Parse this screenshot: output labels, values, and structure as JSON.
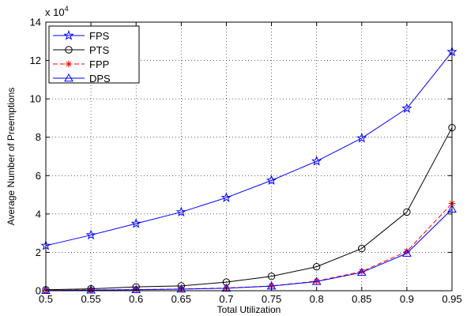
{
  "chart_data": {
    "type": "line",
    "title": "",
    "xlabel": "Total Utilization",
    "ylabel": "Average Number of Preemptions",
    "y_multiplier_label": "x 10",
    "y_multiplier_exponent": "4",
    "x": [
      0.5,
      0.55,
      0.6,
      0.65,
      0.7,
      0.75,
      0.8,
      0.85,
      0.9,
      0.95
    ],
    "xlim": [
      0.5,
      0.95
    ],
    "ylim": [
      0,
      14
    ],
    "x_ticks": [
      "0.5",
      "0.55",
      "0.6",
      "0.65",
      "0.7",
      "0.75",
      "0.8",
      "0.85",
      "0.9",
      "0.95"
    ],
    "y_ticks": [
      "0",
      "2",
      "4",
      "6",
      "8",
      "10",
      "12",
      "14"
    ],
    "grid": true,
    "legend_position": "top-left",
    "series": [
      {
        "name": "FPS",
        "color": "#0000ff",
        "dash": "solid",
        "marker": "star",
        "values": [
          2.35,
          2.9,
          3.5,
          4.1,
          4.85,
          5.75,
          6.75,
          7.95,
          9.5,
          12.45
        ]
      },
      {
        "name": "PTS",
        "color": "#000000",
        "dash": "solid",
        "marker": "circle",
        "values": [
          0.05,
          0.1,
          0.2,
          0.25,
          0.45,
          0.75,
          1.25,
          2.2,
          4.1,
          8.5
        ]
      },
      {
        "name": "FPP",
        "color": "#ff0000",
        "dash": "dashed",
        "marker": "asterisk",
        "values": [
          0.02,
          0.04,
          0.06,
          0.09,
          0.14,
          0.25,
          0.5,
          1.0,
          2.05,
          4.55
        ]
      },
      {
        "name": "DPS",
        "color": "#0000ff",
        "dash": "solid",
        "marker": "triangle",
        "values": [
          0.01,
          0.03,
          0.05,
          0.08,
          0.13,
          0.24,
          0.48,
          0.95,
          1.95,
          4.25
        ]
      }
    ]
  }
}
